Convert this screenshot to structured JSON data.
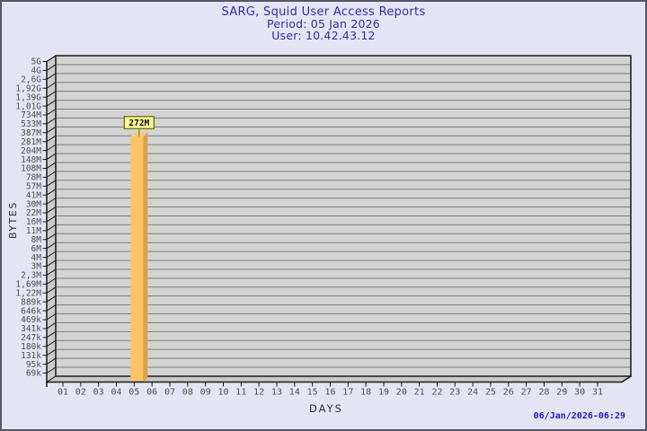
{
  "title": {
    "line1": "SARG, Squid User Access Reports",
    "line2": "Period: 05 Jan 2026",
    "line3": "User: 10.42.43.12"
  },
  "footer": {
    "timestamp": "06/Jan/2026-06:29"
  },
  "chart_data": {
    "type": "bar",
    "title": "SARG, Squid User Access Reports",
    "subtitle": [
      "Period: 05 Jan 2026",
      "User: 10.42.43.12"
    ],
    "xlabel": "DAYS",
    "ylabel": "BYTES",
    "y_scale": "log",
    "grid": true,
    "style": "3d-bar",
    "y_ticks": [
      "5G",
      "4G",
      "2,6G",
      "1,92G",
      "1,39G",
      "1,01G",
      "734M",
      "533M",
      "387M",
      "281M",
      "204M",
      "148M",
      "108M",
      "78M",
      "57M",
      "41M",
      "30M",
      "22M",
      "16M",
      "11M",
      "8M",
      "6M",
      "4M",
      "3M",
      "2,3M",
      "1,69M",
      "1,22M",
      "889k",
      "646k",
      "469k",
      "341k",
      "247k",
      "180k",
      "131k",
      "95k",
      "69k"
    ],
    "categories": [
      "01",
      "02",
      "03",
      "04",
      "05",
      "06",
      "07",
      "08",
      "09",
      "10",
      "11",
      "12",
      "13",
      "14",
      "15",
      "16",
      "17",
      "18",
      "19",
      "20",
      "21",
      "22",
      "23",
      "24",
      "25",
      "26",
      "27",
      "28",
      "29",
      "30",
      "31"
    ],
    "bars": [
      {
        "category": "05",
        "value_label": "272M"
      }
    ],
    "colors": {
      "bar_front": "#FDC365",
      "bar_side": "#D9A24C",
      "bar_top": "#F3CC82",
      "annotation_bg": "#FBFB9C",
      "annotation_border": "#6F6F00",
      "annotation_text": "#111111",
      "plot_bg": "#D3D3D3",
      "grid_line": "#7C7C7C",
      "wall": "#CBCBCB",
      "floor": "#C8C8C8",
      "axis": "#1A1A1A",
      "tick_label": "#4F4F4F",
      "axis_title": "#303030"
    }
  }
}
